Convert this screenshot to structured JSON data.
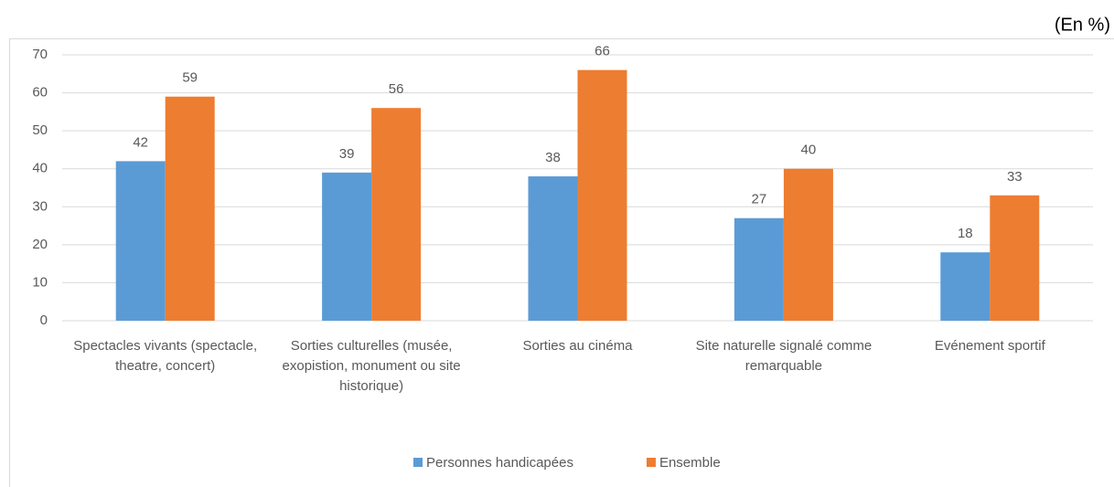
{
  "chart_data": {
    "type": "bar",
    "unit_note": "(En %)",
    "categories": [
      "Spectacles vivants (spectacle, theatre, concert)",
      "Sorties culturelles (musée, exopistion, monument ou site historique)",
      "Sorties au cinéma",
      "Site naturelle signalé comme remarquable",
      "Evénement sportif"
    ],
    "series": [
      {
        "name": "Personnes handicapées",
        "color": "#5b9bd5",
        "values": [
          42,
          39,
          38,
          27,
          18
        ]
      },
      {
        "name": "Ensemble",
        "color": "#ed7d31",
        "values": [
          59,
          56,
          66,
          40,
          33
        ]
      }
    ],
    "ylim": [
      0,
      70
    ],
    "yticks": [
      0,
      10,
      20,
      30,
      40,
      50,
      60,
      70
    ],
    "grid": true,
    "legend": "bottom"
  }
}
